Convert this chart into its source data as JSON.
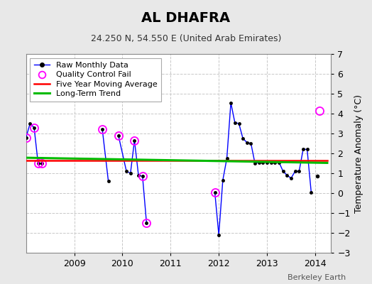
{
  "title": "AL DHAFRA",
  "subtitle": "24.250 N, 54.550 E (United Arab Emirates)",
  "ylabel": "Temperature Anomaly (°C)",
  "footer": "Berkeley Earth",
  "ylim": [
    -3,
    7
  ],
  "yticks": [
    -3,
    -2,
    -1,
    0,
    1,
    2,
    3,
    4,
    5,
    6,
    7
  ],
  "xlim_start": 2008.0,
  "xlim_end": 2014.33,
  "xtick_years": [
    2009,
    2010,
    2011,
    2012,
    2013,
    2014
  ],
  "segments": [
    {
      "x": [
        2008.0,
        2008.083,
        2008.167,
        2008.25,
        2008.333
      ],
      "y": [
        2.8,
        3.5,
        3.3,
        1.5,
        1.5
      ]
    },
    {
      "x": [
        2009.583,
        2009.708
      ],
      "y": [
        3.2,
        0.6
      ]
    },
    {
      "x": [
        2009.917,
        2010.083,
        2010.167,
        2010.25,
        2010.333,
        2010.417,
        2010.5
      ],
      "y": [
        2.9,
        1.1,
        1.0,
        2.65,
        0.9,
        0.85,
        -1.5
      ]
    },
    {
      "x": [
        2011.917,
        2012.0,
        2012.083,
        2012.167,
        2012.25,
        2012.333,
        2012.417,
        2012.5,
        2012.583,
        2012.667,
        2012.75,
        2012.833,
        2012.917,
        2013.0,
        2013.083,
        2013.167,
        2013.25,
        2013.333,
        2013.417,
        2013.5,
        2013.583,
        2013.667,
        2013.75,
        2013.833,
        2013.917
      ],
      "y": [
        0.05,
        -2.1,
        0.65,
        1.75,
        4.55,
        3.55,
        3.5,
        2.75,
        2.55,
        2.5,
        1.5,
        1.55,
        1.55,
        1.55,
        1.55,
        1.55,
        1.55,
        1.1,
        0.9,
        0.75,
        1.1,
        1.1,
        2.2,
        2.2,
        0.05
      ]
    }
  ],
  "isolated": {
    "x": [
      2014.042
    ],
    "y": [
      0.85
    ]
  },
  "qc_fail": {
    "x": [
      2008.0,
      2008.167,
      2008.25,
      2008.333,
      2009.583,
      2009.917,
      2010.25,
      2010.417,
      2010.5,
      2011.917,
      2014.083
    ],
    "y": [
      2.8,
      3.3,
      1.5,
      1.5,
      3.2,
      2.9,
      2.65,
      0.85,
      -1.5,
      0.05,
      4.15
    ]
  },
  "five_year_ma": {
    "x": [
      2008.0,
      2014.25
    ],
    "y": [
      1.65,
      1.65
    ]
  },
  "long_term_trend": {
    "x": [
      2008.0,
      2014.25
    ],
    "y": [
      1.78,
      1.52
    ]
  },
  "bg_color": "#e8e8e8",
  "plot_bg_color": "#ffffff",
  "raw_line_color": "#0000ff",
  "raw_marker_color": "#000000",
  "qc_circle_color": "#ff00ff",
  "five_year_color": "#ff0000",
  "long_term_color": "#00bb00",
  "grid_color": "#c8c8c8",
  "title_fontsize": 14,
  "subtitle_fontsize": 9,
  "tick_fontsize": 9,
  "ylabel_fontsize": 9,
  "legend_fontsize": 8,
  "footer_fontsize": 8
}
